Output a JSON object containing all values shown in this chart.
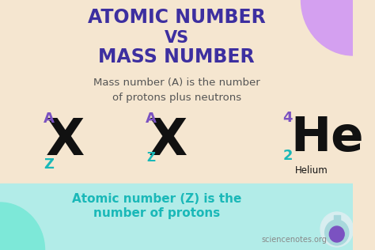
{
  "bg_color": "#f5e6d0",
  "bottom_bg_color": "#b2ece8",
  "title_line1": "ATOMIC NUMBER",
  "title_line2": "VS",
  "title_line3": "MASS NUMBER",
  "title_color": "#3d2fa0",
  "subtitle": "Mass number (A) is the number\nof protons plus neutrons",
  "subtitle_color": "#555555",
  "bottom_text_line1": "Atomic number (Z) is the",
  "bottom_text_line2": "number of protons",
  "bottom_text_color": "#1ab8b8",
  "watermark": "sciencenotes.org",
  "watermark_color": "#888888",
  "purple_color": "#7b52c1",
  "teal_color": "#1ab8b8",
  "black_color": "#111111",
  "decoration_purple": "#d4a0f0",
  "decoration_teal": "#7de8d8",
  "fig_width": 4.74,
  "fig_height": 3.16,
  "dpi": 100
}
